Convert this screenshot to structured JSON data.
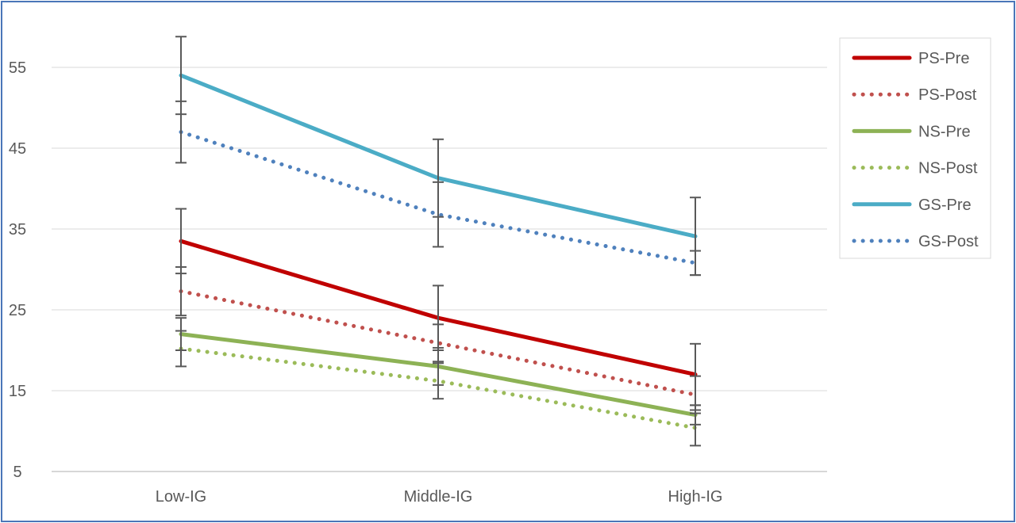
{
  "chart_data": {
    "type": "line",
    "categories": [
      "Low-IG",
      "Middle-IG",
      "High-IG"
    ],
    "ylim": [
      5,
      58
    ],
    "yticks": [
      5,
      15,
      25,
      35,
      45,
      55
    ],
    "grid": true,
    "legend_position": "right",
    "series": [
      {
        "name": "PS-Pre",
        "values": [
          33.5,
          24.0,
          17.0
        ],
        "errors": [
          4.0,
          4.0,
          3.8
        ],
        "color": "#c00000",
        "style": "solid"
      },
      {
        "name": "PS-Post",
        "values": [
          27.3,
          20.9,
          14.5
        ],
        "errors": [
          3.0,
          2.3,
          2.3
        ],
        "color": "#c0504d",
        "style": "dotted"
      },
      {
        "name": "NS-Pre",
        "values": [
          22.0,
          18.0,
          12.0
        ],
        "errors": [
          2.0,
          2.3,
          1.2
        ],
        "color": "#8db255",
        "style": "solid"
      },
      {
        "name": "NS-Post",
        "values": [
          20.2,
          16.2,
          10.4
        ],
        "errors": [
          2.2,
          2.2,
          2.2
        ],
        "color": "#9bbb59",
        "style": "dotted"
      },
      {
        "name": "GS-Pre",
        "values": [
          54.0,
          41.3,
          34.1
        ],
        "errors": [
          4.8,
          4.8,
          4.8
        ],
        "color": "#4bacc6",
        "style": "solid"
      },
      {
        "name": "GS-Post",
        "values": [
          47.0,
          36.8,
          30.8
        ],
        "errors": [
          3.8,
          4.0,
          1.5
        ],
        "color": "#4f81bd",
        "style": "dotted"
      }
    ]
  }
}
